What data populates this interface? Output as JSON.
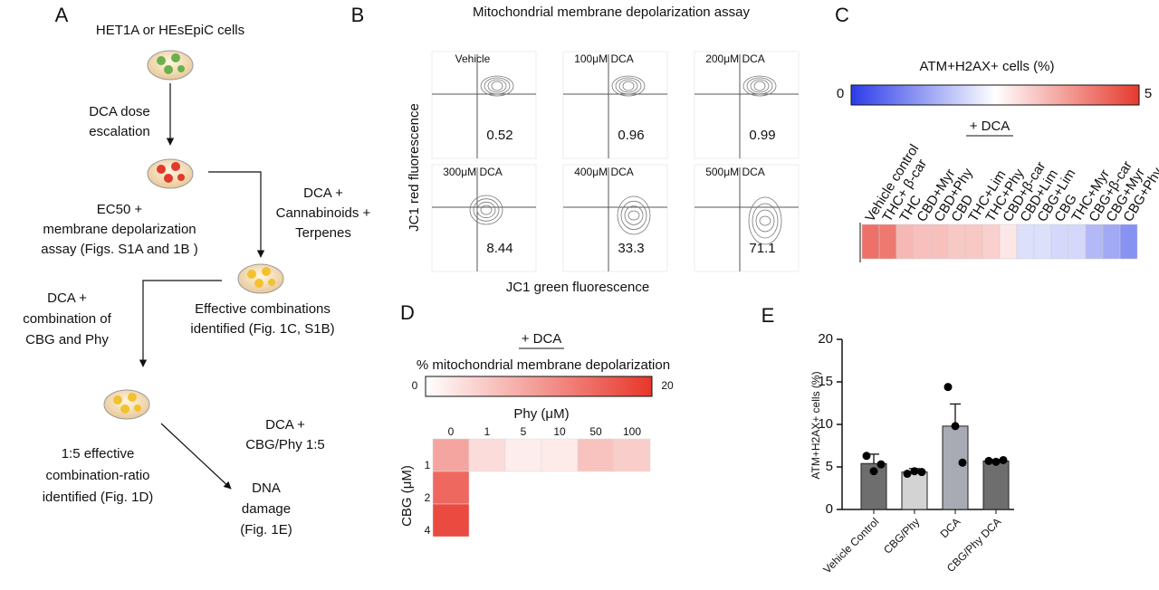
{
  "panel_a": {
    "label": "A",
    "source": "HET1A  or HEsEpiC cells",
    "step1": [
      "DCA dose",
      "escalation"
    ],
    "step2": [
      "EC50 +",
      "membrane depolarization",
      "assay (Figs. S1A and 1B )"
    ],
    "step3": [
      "DCA +",
      "Cannabinoids +",
      "Terpenes"
    ],
    "step4": [
      "Effective combinations",
      "identified (Fig. 1C, S1B)"
    ],
    "step5": [
      "DCA +",
      "combination of",
      "CBG and Phy"
    ],
    "step6": [
      "DCA +",
      "CBG/Phy 1:5"
    ],
    "step7": [
      "1:5 effective",
      "combination-ratio",
      "identified (Fig. 1D)"
    ],
    "step8": [
      "DNA",
      "damage",
      "(Fig. 1E)"
    ]
  },
  "panel_b": {
    "label": "B",
    "title": "Mitochondrial membrane depolarization assay",
    "y_label": "JC1 red fluorescence",
    "x_label": "JC1 green fluorescence",
    "plots": [
      {
        "condition": "Vehicle",
        "value": 0.52
      },
      {
        "condition": "100μM DCA",
        "value": 0.96
      },
      {
        "condition": "200μM DCA",
        "value": 0.99
      },
      {
        "condition": "300μM DCA",
        "value": 8.44
      },
      {
        "condition": "400μM DCA",
        "value": 33.3
      },
      {
        "condition": "500μM DCA",
        "value": 71.1
      }
    ]
  },
  "panel_c": {
    "label": "C",
    "scale_title": "ATM+H2AX+ cells (%)",
    "scale": [
      0,
      5
    ],
    "colors": [
      "#2b3ce8",
      "#ffffff",
      "#e63a2e"
    ],
    "subtitle": "+ DCA",
    "columns": [
      "Vehicle control",
      "THC+ β-car",
      "THC",
      "CBD+Myr",
      "CBD+Phy",
      "CBD",
      "THC+Lim",
      "THC+Phy",
      "CBD+β-car",
      "CBD+Lim",
      "CBG+Lim",
      "CBG",
      "THC+Myr",
      "CBG+β-car",
      "CBG+Myr",
      "CBG+Phy"
    ],
    "values": [
      4.3,
      4.2,
      3.4,
      3.3,
      3.3,
      3.2,
      3.2,
      3.1,
      2.8,
      2.1,
      2.1,
      2.0,
      2.0,
      1.6,
      1.4,
      1.1
    ]
  },
  "panel_d": {
    "label": "D",
    "title": "+ DCA",
    "scale_title": "% mitochondrial membrane depolarization",
    "scale": [
      0,
      20
    ],
    "colors": [
      "#ffffff",
      "#e8362a"
    ],
    "x_label": "Phy (μM)",
    "y_label": "CBG (μM)",
    "columns": [
      0,
      1,
      5,
      10,
      50,
      100
    ],
    "rows": [
      1,
      2,
      4
    ],
    "values": [
      [
        9,
        3.5,
        1.8,
        2,
        6,
        5
      ],
      [
        15,
        null,
        null,
        null,
        null,
        null
      ],
      [
        18,
        null,
        null,
        null,
        null,
        null
      ]
    ]
  },
  "panel_e": {
    "type": "bar",
    "label": "E",
    "y_label": "ATM+H2AX+ cells (%)",
    "categories": [
      "Vehicle Control",
      "CBG/Phy",
      "DCA",
      "CBG/Phy DCA"
    ],
    "values": [
      5.4,
      4.4,
      9.8,
      5.7
    ],
    "errors": [
      1.1,
      0.4,
      2.6,
      0.15
    ],
    "points": [
      [
        6.3,
        4.5,
        5.3
      ],
      [
        4.2,
        4.5,
        4.4
      ],
      [
        14.4,
        9.8,
        5.5
      ],
      [
        5.7,
        5.6,
        5.8
      ]
    ],
    "colors": [
      "#6e6e6e",
      "#d3d3d3",
      "#a8aab4",
      "#6e6e6e"
    ],
    "ylim": [
      0,
      20
    ],
    "yticks": [
      0,
      5,
      10,
      15,
      20
    ]
  }
}
